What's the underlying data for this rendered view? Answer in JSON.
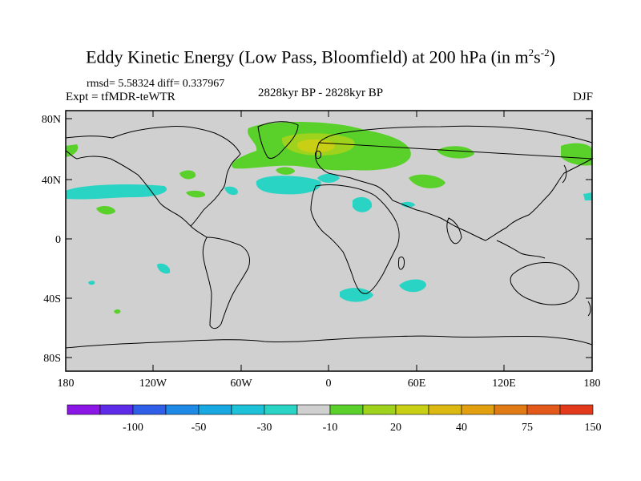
{
  "title": {
    "main": "Eddy Kinetic Energy (Low Pass, Bloomfield) at 200 hPa (in m",
    "sup1": "2",
    "mid": "s",
    "sup2": "-2",
    "end": ")"
  },
  "stats": "rmsd= 5.58324 diff= 0.337967",
  "expt": "Expt = tfMDR-teWTR",
  "period": "2828kyr BP - 2828kyr BP",
  "season": "DJF",
  "axes": {
    "lat_ticks": [
      "80N",
      "40N",
      "0",
      "40S",
      "80S"
    ],
    "lon_ticks": [
      "180",
      "120W",
      "60W",
      "0",
      "60E",
      "120E",
      "180"
    ]
  },
  "colorbar": {
    "colors": [
      "#8b16e6",
      "#5e2ce8",
      "#2f5fe8",
      "#1f8ae6",
      "#18a8e2",
      "#1ec2d8",
      "#2ad4c4",
      "#d0d0d0",
      "#5ad12a",
      "#9ed21c",
      "#c9cf14",
      "#dcb812",
      "#e2a010",
      "#e07a14",
      "#e2591a",
      "#e43a1c"
    ],
    "labels": [
      "-100",
      "-50",
      "-30",
      "-10",
      "20",
      "40",
      "75",
      "150"
    ]
  },
  "map_colors": {
    "background": "#d0d0d0",
    "negative": "#2ad4c4",
    "positive": "#5ad12a",
    "mid_positive": "#9ed21c",
    "strong_positive": "#c9cf14"
  }
}
